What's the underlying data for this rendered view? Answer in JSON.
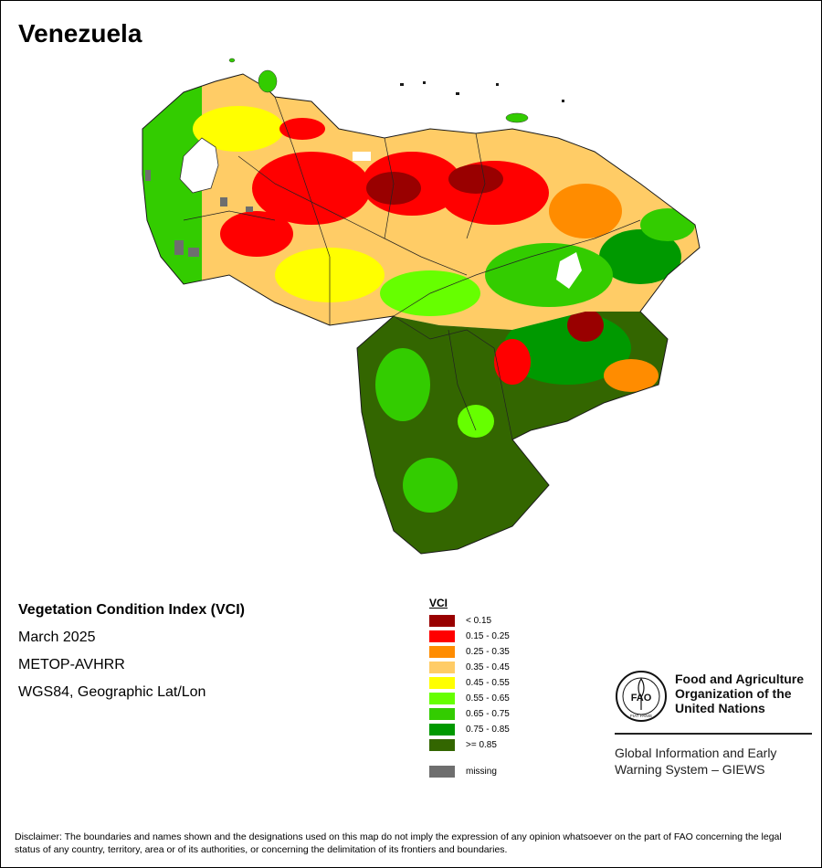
{
  "map": {
    "title": "Venezuela",
    "index_name": "Vegetation Condition Index (VCI)",
    "period": "March 2025",
    "sensor": "METOP-AVHRR",
    "projection": "WGS84, Geographic Lat/Lon"
  },
  "legend": {
    "title": "VCI",
    "classes": [
      {
        "label": "< 0.15",
        "color": "#990000"
      },
      {
        "label": "0.15 - 0.25",
        "color": "#ff0000"
      },
      {
        "label": "0.25 - 0.35",
        "color": "#ff8c00"
      },
      {
        "label": "0.35 - 0.45",
        "color": "#ffcc66"
      },
      {
        "label": "0.45 - 0.55",
        "color": "#ffff00"
      },
      {
        "label": "0.55 - 0.65",
        "color": "#66ff00"
      },
      {
        "label": "0.65 - 0.75",
        "color": "#33cc00"
      },
      {
        "label": "0.75 - 0.85",
        "color": "#009900"
      },
      {
        "label": ">= 0.85",
        "color": "#336600"
      }
    ],
    "missing": {
      "label": "missing",
      "color": "#6e6e6e"
    }
  },
  "organization": {
    "name_lines": [
      "Food and Agriculture",
      "Organization of the",
      "United Nations"
    ],
    "logo_text": "FAO",
    "logo_motto": "FIAT PANIS",
    "system_lines": [
      "Global Information and Early",
      "Warning System – GIEWS"
    ]
  },
  "disclaimer": "Disclaimer: The boundaries and names shown and the designations used on this map do not imply the expression of any opinion whatsoever on the part of FAO concerning the legal status of any country, territory, area or of its authorities, or concerning the delimitation of its frontiers and boundaries."
}
